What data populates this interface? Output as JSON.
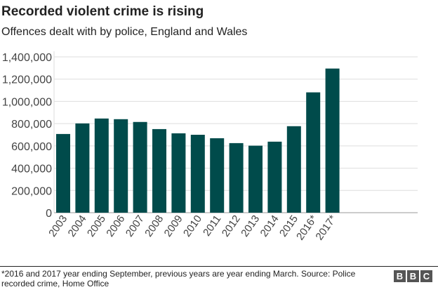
{
  "chart_data": {
    "type": "bar",
    "title": "Recorded violent crime is rising",
    "subtitle": "Offences dealt with by police, England and Wales",
    "categories": [
      "2003",
      "2004",
      "2005",
      "2006",
      "2007",
      "2008",
      "2009",
      "2010",
      "2011",
      "2012",
      "2013",
      "2014",
      "2015",
      "2016*",
      "2017*"
    ],
    "values": [
      707000,
      802000,
      846000,
      840000,
      815000,
      751000,
      713000,
      700000,
      669000,
      625000,
      602000,
      638000,
      777000,
      1081000,
      1295000
    ],
    "ylim": [
      0,
      1400000
    ],
    "yticks": [
      0,
      200000,
      400000,
      600000,
      800000,
      1000000,
      1200000,
      1400000
    ],
    "ytick_labels": [
      "0",
      "200,000",
      "400,000",
      "600,000",
      "800,000",
      "1,000,000",
      "1,200,000",
      "1,400,000"
    ],
    "xlabel": "",
    "ylabel": "",
    "grid": true,
    "bar_color": "#004b4b"
  },
  "footer": {
    "note": "*2016 and 2017 year ending September, previous years are year ending March. Source: Police recorded crime, Home Office",
    "logo": [
      "B",
      "B",
      "C"
    ]
  }
}
